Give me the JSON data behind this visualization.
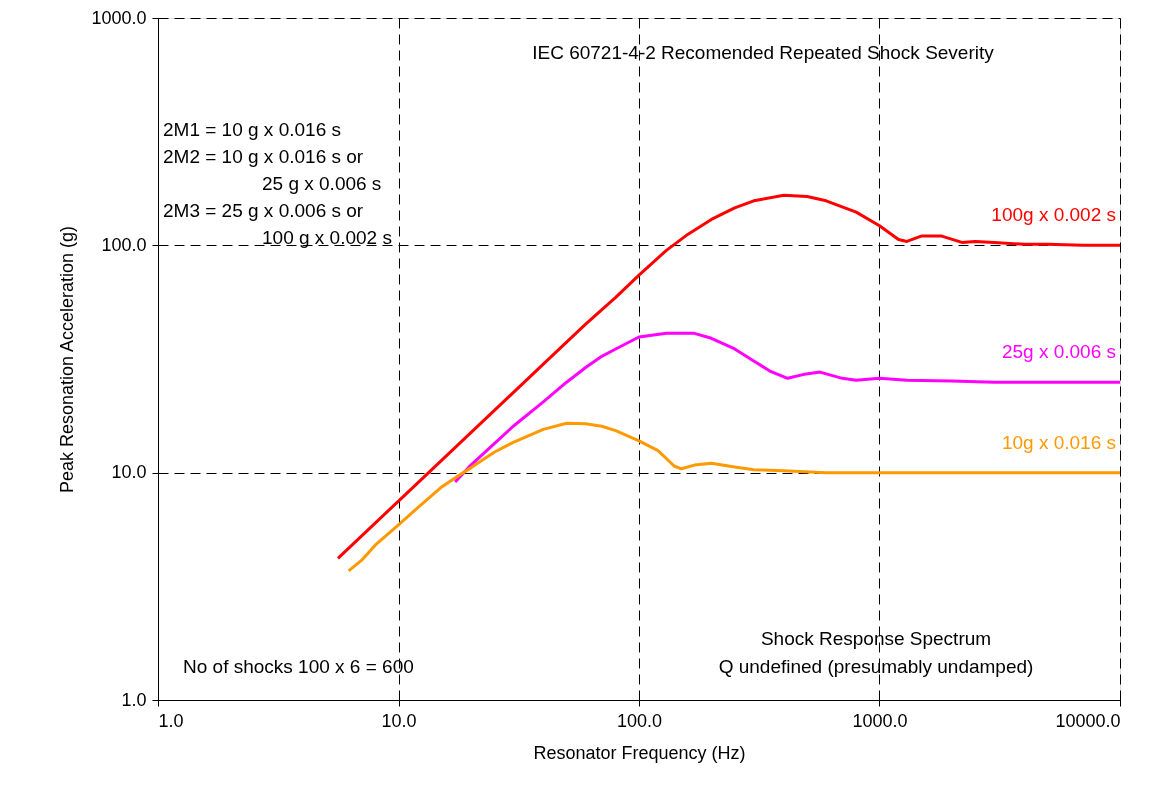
{
  "chart_data": {
    "type": "line",
    "xlabel": "Resonator Frequency  (Hz)",
    "ylabel": "Peak Resonation Acceleration (g)",
    "log": "xy",
    "grid": true,
    "legend": false,
    "marker": "none",
    "line_style": "solid",
    "xlim": [
      1,
      10000
    ],
    "xticks": [
      {
        "value": 1,
        "label": "1.0"
      },
      {
        "value": 10,
        "label": "10.0"
      },
      {
        "value": 100,
        "label": "100.0"
      },
      {
        "value": 1000,
        "label": "1000.0"
      },
      {
        "value": 10000,
        "label": "10000.0"
      }
    ],
    "ylim": [
      1,
      1000
    ],
    "yticks": [
      {
        "value": 1,
        "label": "1.0"
      },
      {
        "value": 10,
        "label": "10.0"
      },
      {
        "value": 100,
        "label": "100.0"
      },
      {
        "value": 1000,
        "label": "1000.0"
      }
    ],
    "series": [
      {
        "name": "100g x 0.002 s",
        "color": "#ff0000",
        "x": [
          5.6,
          10,
          20,
          40,
          60,
          80,
          100,
          130,
          160,
          200,
          250,
          300,
          400,
          500,
          600,
          800,
          1000,
          1200,
          1300,
          1500,
          1800,
          2200,
          2500,
          3000,
          4000,
          5000,
          7000,
          10000
        ],
        "values": [
          4.2,
          7.5,
          15,
          30,
          45,
          59,
          74,
          95,
          112,
          130,
          146,
          157,
          166,
          164,
          157,
          140,
          122,
          106,
          104,
          110,
          110,
          103,
          104,
          103,
          101,
          101,
          100,
          100
        ]
      },
      {
        "name": "25g x 0.006 s",
        "color": "#ff00ff",
        "x": [
          17.2,
          20,
          30,
          40,
          50,
          60,
          70,
          80,
          100,
          130,
          170,
          200,
          250,
          300,
          350,
          415,
          480,
          566,
          700,
          800,
          1000,
          1300,
          2000,
          3000,
          10000
        ],
        "values": [
          9.1,
          10.8,
          16,
          20.5,
          25,
          29,
          32.5,
          35,
          39.5,
          41,
          41,
          39,
          35,
          31,
          28,
          26,
          27,
          27.7,
          26,
          25.5,
          26,
          25.5,
          25.3,
          25,
          25
        ]
      },
      {
        "name": "10g x 0.016 s",
        "color": "#ff9900",
        "x": [
          6.2,
          7,
          8,
          10,
          12,
          15,
          18,
          20,
          25,
          30,
          40,
          50,
          60,
          70,
          80,
          100,
          120,
          140,
          150,
          170,
          200,
          250,
          300,
          400,
          600,
          10000
        ],
        "values": [
          3.7,
          4.1,
          4.8,
          5.9,
          7.0,
          8.6,
          9.8,
          10.5,
          12.3,
          13.6,
          15.5,
          16.5,
          16.4,
          16,
          15.3,
          13.8,
          12.5,
          10.7,
          10.4,
          10.8,
          11,
          10.6,
          10.3,
          10.2,
          10,
          10
        ]
      }
    ],
    "annotations": [
      "IEC 60721-4-2  Recomended Repeated Shock Severity",
      "2M1 = 10 g x 0.016 s",
      "2M2 = 10 g x 0.016 s or",
      "25 g x 0.006 s",
      "2M3 = 25 g x 0.006 s or",
      "100 g x 0.002 s",
      "No of shocks 100 x 6 = 600",
      "Shock Response Spectrum",
      "Q undefined (presumably undamped)"
    ]
  }
}
